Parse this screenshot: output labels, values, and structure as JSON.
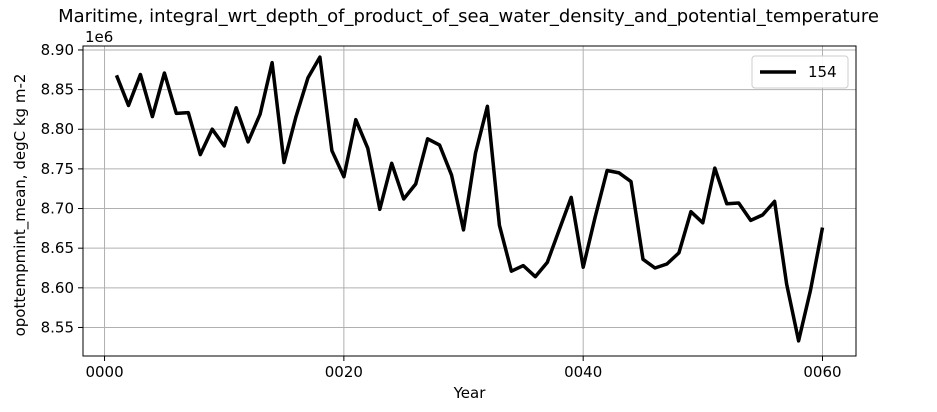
{
  "chart_data": {
    "type": "line",
    "title": "Maritime, integral_wrt_depth_of_product_of_sea_water_density_and_potential_temperature",
    "xlabel": "Year",
    "ylabel": "opottempmint_mean, degC kg m-2",
    "y_offset_label": "1e6",
    "x_tick_labels": [
      "0000",
      "0020",
      "0040",
      "0060"
    ],
    "x_ticks": [
      0,
      20,
      40,
      60
    ],
    "y_ticks": [
      8.55,
      8.6,
      8.65,
      8.7,
      8.75,
      8.8,
      8.85,
      8.9
    ],
    "y_tick_labels": [
      "8.55",
      "8.60",
      "8.65",
      "8.70",
      "8.75",
      "8.80",
      "8.85",
      "8.90"
    ],
    "xlim": [
      -1.8,
      62.8
    ],
    "ylim": [
      8.514,
      8.905
    ],
    "grid": true,
    "legend_position": "top-right",
    "series": [
      {
        "name": "154",
        "color": "#000000",
        "x": [
          1,
          2,
          3,
          4,
          5,
          6,
          7,
          8,
          9,
          10,
          11,
          12,
          13,
          14,
          15,
          16,
          17,
          18,
          19,
          20,
          21,
          22,
          23,
          24,
          25,
          26,
          27,
          28,
          29,
          30,
          31,
          32,
          33,
          34,
          35,
          36,
          37,
          38,
          39,
          40,
          41,
          42,
          43,
          44,
          45,
          46,
          47,
          48,
          49,
          50,
          51,
          52,
          53,
          54,
          55,
          56,
          57,
          58,
          59,
          60
        ],
        "values": [
          8.868,
          8.83,
          8.869,
          8.816,
          8.871,
          8.82,
          8.821,
          8.768,
          8.8,
          8.779,
          8.827,
          8.784,
          8.819,
          8.884,
          8.758,
          8.816,
          8.865,
          8.891,
          8.773,
          8.74,
          8.812,
          8.776,
          8.699,
          8.757,
          8.712,
          8.731,
          8.788,
          8.78,
          8.742,
          8.673,
          8.77,
          8.829,
          8.679,
          8.621,
          8.628,
          8.614,
          8.632,
          8.673,
          8.714,
          8.626,
          8.689,
          8.748,
          8.745,
          8.734,
          8.636,
          8.625,
          8.63,
          8.644,
          8.696,
          8.682,
          8.751,
          8.706,
          8.707,
          8.685,
          8.692,
          8.709,
          8.605,
          8.533,
          8.597,
          8.676
        ]
      }
    ]
  }
}
